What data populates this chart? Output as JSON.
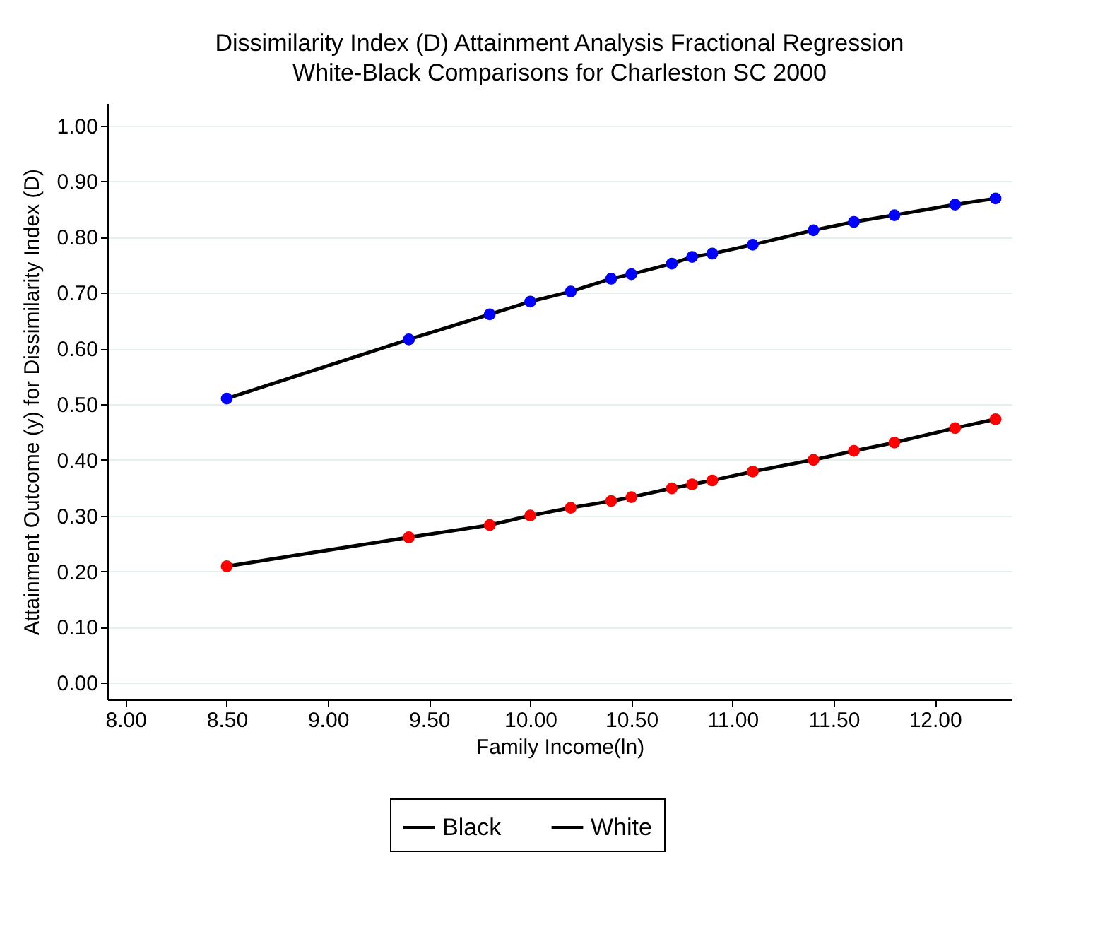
{
  "chart_data": {
    "type": "line",
    "title": "Dissimilarity Index (D) Attainment Analysis Fractional Regression",
    "subtitle": "White-Black Comparisons for Charleston SC 2000",
    "xlabel": "Family Income(ln)",
    "ylabel": "Attainment Outcome (y) for Dissimilarity Index (D)",
    "x": [
      8.5,
      9.4,
      9.8,
      10.0,
      10.2,
      10.4,
      10.5,
      10.7,
      10.8,
      10.9,
      11.1,
      11.4,
      11.6,
      11.8,
      12.1,
      12.3
    ],
    "series": [
      {
        "name": "Black",
        "color": "#ff0000",
        "values": [
          0.209,
          0.261,
          0.283,
          0.3,
          0.314,
          0.326,
          0.333,
          0.349,
          0.356,
          0.363,
          0.379,
          0.4,
          0.416,
          0.431,
          0.457,
          0.473
        ]
      },
      {
        "name": "White",
        "color": "#0000ff",
        "values": [
          0.51,
          0.616,
          0.661,
          0.684,
          0.702,
          0.725,
          0.733,
          0.752,
          0.764,
          0.77,
          0.786,
          0.812,
          0.827,
          0.839,
          0.858,
          0.869
        ]
      }
    ],
    "xlim": [
      7.91,
      12.38
    ],
    "xticks": [
      {
        "value": 8.0,
        "label": "8.00"
      },
      {
        "value": 8.5,
        "label": "8.50"
      },
      {
        "value": 9.0,
        "label": "9.00"
      },
      {
        "value": 9.5,
        "label": "9.50"
      },
      {
        "value": 10.0,
        "label": "10.00"
      },
      {
        "value": 10.5,
        "label": "10.50"
      },
      {
        "value": 11.0,
        "label": "11.00"
      },
      {
        "value": 11.5,
        "label": "11.50"
      },
      {
        "value": 12.0,
        "label": "12.00"
      }
    ],
    "ylim": [
      -0.03,
      1.04
    ],
    "yticks": [
      {
        "value": 0.0,
        "label": "0.00"
      },
      {
        "value": 0.1,
        "label": "0.10"
      },
      {
        "value": 0.2,
        "label": "0.20"
      },
      {
        "value": 0.3,
        "label": "0.30"
      },
      {
        "value": 0.4,
        "label": "0.40"
      },
      {
        "value": 0.5,
        "label": "0.50"
      },
      {
        "value": 0.6,
        "label": "0.60"
      },
      {
        "value": 0.7,
        "label": "0.70"
      },
      {
        "value": 0.8,
        "label": "0.80"
      },
      {
        "value": 0.9,
        "label": "0.90"
      },
      {
        "value": 1.0,
        "label": "1.00"
      }
    ],
    "grid": "y",
    "legend": "bottom",
    "marker": "circle",
    "line_style": "solid"
  }
}
